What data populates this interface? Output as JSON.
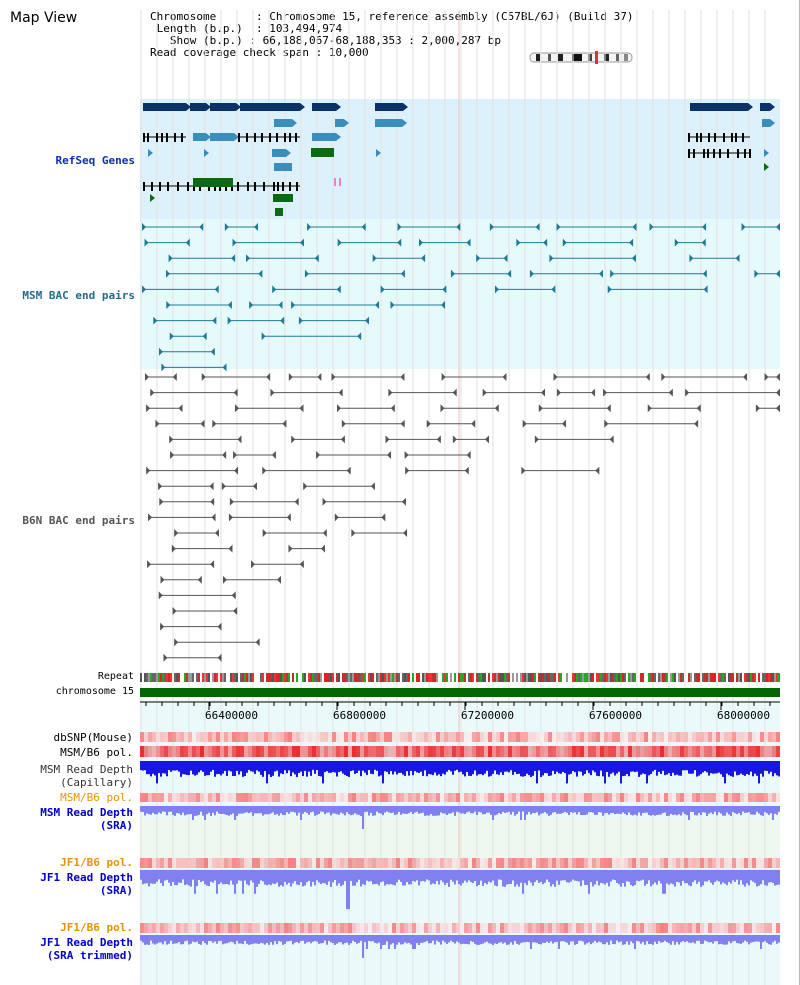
{
  "title": "Map View",
  "info": {
    "chromosome_key": "Chromosome",
    "chromosome_val": "Chromosome 15, reference assembly (C57BL/6J) (Build 37)",
    "length_key": "Length (b.p.)",
    "length_val": "103,494,974",
    "show_key": "Show (b.p.)",
    "show_val": "66,188,067-68,188,353 : 2,000,287 bp",
    "coverage_key": "Read coverage check span",
    "coverage_val": "10,000"
  },
  "tracks": {
    "refseq": "RefSeq Genes",
    "msm_bac": "MSM BAC end pairs",
    "b6n_bac": "B6N BAC end pairs",
    "repeat": "Repeat",
    "chromosome": "chromosome 15"
  },
  "axis": {
    "ticks": [
      "66400000",
      "66800000",
      "67200000",
      "67600000",
      "68000000"
    ]
  },
  "lower_tracks": [
    {
      "label": "dbSNP(Mouse)",
      "color": "#000000"
    },
    {
      "label": "MSM/B6 pol.",
      "color": "#000000"
    },
    {
      "label": "MSM Read Depth",
      "label2": "(Capillary)",
      "color": "#000000"
    },
    {
      "label": "MSM/B6 pol.",
      "color": "#e59400"
    },
    {
      "label": "MSM Read Depth",
      "label2": "(SRA)",
      "color": "#0000cc"
    },
    {
      "label": "JF1/B6 pol.",
      "color": "#e59400"
    },
    {
      "label": "JF1 Read Depth",
      "label2": "(SRA)",
      "color": "#0000cc"
    },
    {
      "label": "JF1/B6 pol.",
      "color": "#e59400"
    },
    {
      "label": "JF1 Read Depth",
      "label2": "(SRA trimmed)",
      "color": "#0000cc"
    }
  ],
  "colors": {
    "refseq_bg": "#dcf1fb",
    "msm_bg": "#e6fafb",
    "gene_dark": "#0a3268",
    "gene_mid": "#3b8ebb",
    "gene_green": "#0c6a10",
    "msm_line": "#1f7a96",
    "b6n_line": "#555555",
    "chrom_bar": "#006600",
    "depth_blue": "#1717e0",
    "depth_light": "#8080f0"
  }
}
